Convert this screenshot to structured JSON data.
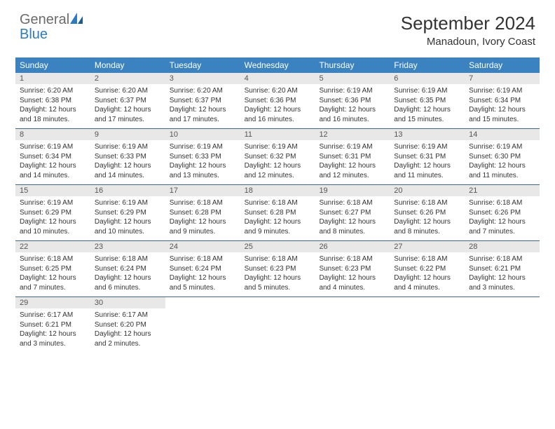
{
  "logo": {
    "general": "General",
    "blue": "Blue"
  },
  "title": "September 2024",
  "location": "Manadoun, Ivory Coast",
  "colors": {
    "header_bg": "#3b83c0",
    "header_text": "#ffffff",
    "daynum_bg": "#e8e8e8",
    "border": "#3b6a99",
    "logo_blue": "#2f7bbf",
    "logo_gray": "#6b6b6b"
  },
  "day_headers": [
    "Sunday",
    "Monday",
    "Tuesday",
    "Wednesday",
    "Thursday",
    "Friday",
    "Saturday"
  ],
  "weeks": [
    [
      {
        "n": "1",
        "sr": "Sunrise: 6:20 AM",
        "ss": "Sunset: 6:38 PM",
        "dl1": "Daylight: 12 hours",
        "dl2": "and 18 minutes."
      },
      {
        "n": "2",
        "sr": "Sunrise: 6:20 AM",
        "ss": "Sunset: 6:37 PM",
        "dl1": "Daylight: 12 hours",
        "dl2": "and 17 minutes."
      },
      {
        "n": "3",
        "sr": "Sunrise: 6:20 AM",
        "ss": "Sunset: 6:37 PM",
        "dl1": "Daylight: 12 hours",
        "dl2": "and 17 minutes."
      },
      {
        "n": "4",
        "sr": "Sunrise: 6:20 AM",
        "ss": "Sunset: 6:36 PM",
        "dl1": "Daylight: 12 hours",
        "dl2": "and 16 minutes."
      },
      {
        "n": "5",
        "sr": "Sunrise: 6:19 AM",
        "ss": "Sunset: 6:36 PM",
        "dl1": "Daylight: 12 hours",
        "dl2": "and 16 minutes."
      },
      {
        "n": "6",
        "sr": "Sunrise: 6:19 AM",
        "ss": "Sunset: 6:35 PM",
        "dl1": "Daylight: 12 hours",
        "dl2": "and 15 minutes."
      },
      {
        "n": "7",
        "sr": "Sunrise: 6:19 AM",
        "ss": "Sunset: 6:34 PM",
        "dl1": "Daylight: 12 hours",
        "dl2": "and 15 minutes."
      }
    ],
    [
      {
        "n": "8",
        "sr": "Sunrise: 6:19 AM",
        "ss": "Sunset: 6:34 PM",
        "dl1": "Daylight: 12 hours",
        "dl2": "and 14 minutes."
      },
      {
        "n": "9",
        "sr": "Sunrise: 6:19 AM",
        "ss": "Sunset: 6:33 PM",
        "dl1": "Daylight: 12 hours",
        "dl2": "and 14 minutes."
      },
      {
        "n": "10",
        "sr": "Sunrise: 6:19 AM",
        "ss": "Sunset: 6:33 PM",
        "dl1": "Daylight: 12 hours",
        "dl2": "and 13 minutes."
      },
      {
        "n": "11",
        "sr": "Sunrise: 6:19 AM",
        "ss": "Sunset: 6:32 PM",
        "dl1": "Daylight: 12 hours",
        "dl2": "and 12 minutes."
      },
      {
        "n": "12",
        "sr": "Sunrise: 6:19 AM",
        "ss": "Sunset: 6:31 PM",
        "dl1": "Daylight: 12 hours",
        "dl2": "and 12 minutes."
      },
      {
        "n": "13",
        "sr": "Sunrise: 6:19 AM",
        "ss": "Sunset: 6:31 PM",
        "dl1": "Daylight: 12 hours",
        "dl2": "and 11 minutes."
      },
      {
        "n": "14",
        "sr": "Sunrise: 6:19 AM",
        "ss": "Sunset: 6:30 PM",
        "dl1": "Daylight: 12 hours",
        "dl2": "and 11 minutes."
      }
    ],
    [
      {
        "n": "15",
        "sr": "Sunrise: 6:19 AM",
        "ss": "Sunset: 6:29 PM",
        "dl1": "Daylight: 12 hours",
        "dl2": "and 10 minutes."
      },
      {
        "n": "16",
        "sr": "Sunrise: 6:19 AM",
        "ss": "Sunset: 6:29 PM",
        "dl1": "Daylight: 12 hours",
        "dl2": "and 10 minutes."
      },
      {
        "n": "17",
        "sr": "Sunrise: 6:18 AM",
        "ss": "Sunset: 6:28 PM",
        "dl1": "Daylight: 12 hours",
        "dl2": "and 9 minutes."
      },
      {
        "n": "18",
        "sr": "Sunrise: 6:18 AM",
        "ss": "Sunset: 6:28 PM",
        "dl1": "Daylight: 12 hours",
        "dl2": "and 9 minutes."
      },
      {
        "n": "19",
        "sr": "Sunrise: 6:18 AM",
        "ss": "Sunset: 6:27 PM",
        "dl1": "Daylight: 12 hours",
        "dl2": "and 8 minutes."
      },
      {
        "n": "20",
        "sr": "Sunrise: 6:18 AM",
        "ss": "Sunset: 6:26 PM",
        "dl1": "Daylight: 12 hours",
        "dl2": "and 8 minutes."
      },
      {
        "n": "21",
        "sr": "Sunrise: 6:18 AM",
        "ss": "Sunset: 6:26 PM",
        "dl1": "Daylight: 12 hours",
        "dl2": "and 7 minutes."
      }
    ],
    [
      {
        "n": "22",
        "sr": "Sunrise: 6:18 AM",
        "ss": "Sunset: 6:25 PM",
        "dl1": "Daylight: 12 hours",
        "dl2": "and 7 minutes."
      },
      {
        "n": "23",
        "sr": "Sunrise: 6:18 AM",
        "ss": "Sunset: 6:24 PM",
        "dl1": "Daylight: 12 hours",
        "dl2": "and 6 minutes."
      },
      {
        "n": "24",
        "sr": "Sunrise: 6:18 AM",
        "ss": "Sunset: 6:24 PM",
        "dl1": "Daylight: 12 hours",
        "dl2": "and 5 minutes."
      },
      {
        "n": "25",
        "sr": "Sunrise: 6:18 AM",
        "ss": "Sunset: 6:23 PM",
        "dl1": "Daylight: 12 hours",
        "dl2": "and 5 minutes."
      },
      {
        "n": "26",
        "sr": "Sunrise: 6:18 AM",
        "ss": "Sunset: 6:23 PM",
        "dl1": "Daylight: 12 hours",
        "dl2": "and 4 minutes."
      },
      {
        "n": "27",
        "sr": "Sunrise: 6:18 AM",
        "ss": "Sunset: 6:22 PM",
        "dl1": "Daylight: 12 hours",
        "dl2": "and 4 minutes."
      },
      {
        "n": "28",
        "sr": "Sunrise: 6:18 AM",
        "ss": "Sunset: 6:21 PM",
        "dl1": "Daylight: 12 hours",
        "dl2": "and 3 minutes."
      }
    ],
    [
      {
        "n": "29",
        "sr": "Sunrise: 6:17 AM",
        "ss": "Sunset: 6:21 PM",
        "dl1": "Daylight: 12 hours",
        "dl2": "and 3 minutes."
      },
      {
        "n": "30",
        "sr": "Sunrise: 6:17 AM",
        "ss": "Sunset: 6:20 PM",
        "dl1": "Daylight: 12 hours",
        "dl2": "and 2 minutes."
      },
      null,
      null,
      null,
      null,
      null
    ]
  ]
}
